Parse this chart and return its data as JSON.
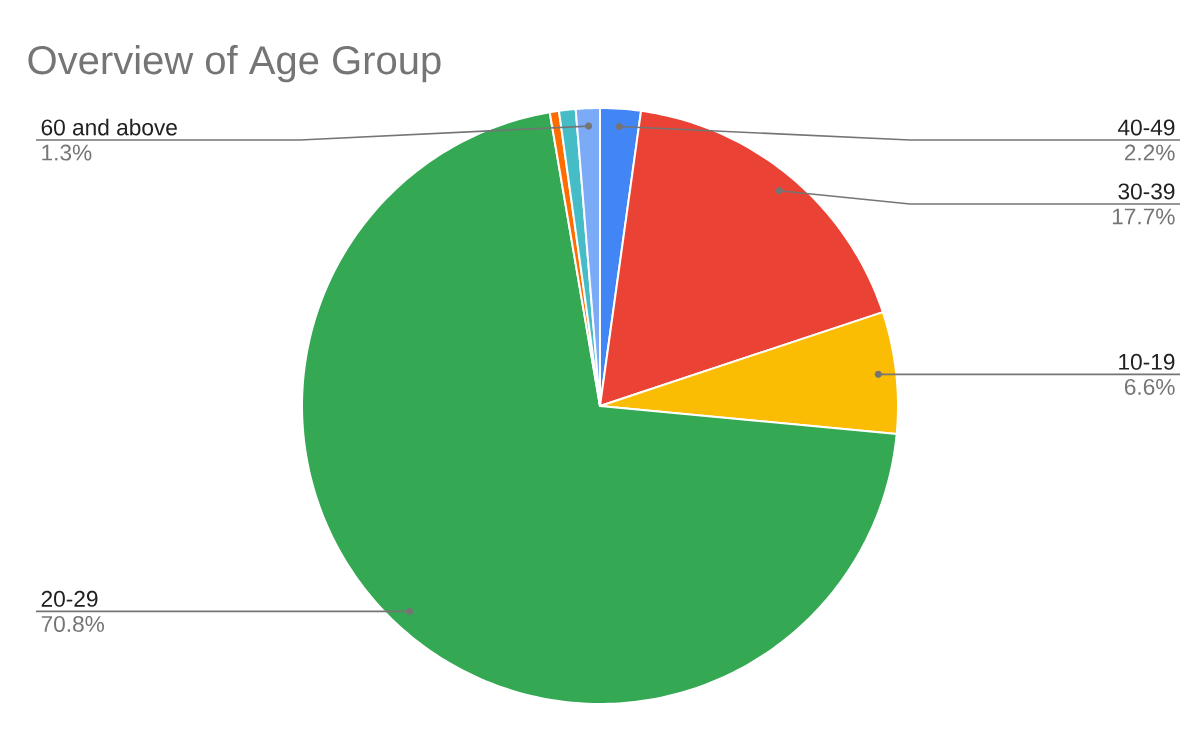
{
  "chart_data": {
    "type": "pie",
    "title": "Overview of Age Group",
    "categories": [
      "40-49",
      "30-39",
      "10-19",
      "20-29",
      null,
      null,
      "60 and above"
    ],
    "values": [
      2.2,
      17.7,
      6.6,
      70.8,
      0.5,
      0.9,
      1.3
    ],
    "colors": [
      "#4285f4",
      "#ea4335",
      "#fbbc04",
      "#34a853",
      "#ff6d01",
      "#46bdc6",
      "#7baaf7"
    ],
    "value_labels": [
      "2.2%",
      "17.7%",
      "6.6%",
      "70.8%",
      null,
      null,
      "1.3%"
    ]
  }
}
